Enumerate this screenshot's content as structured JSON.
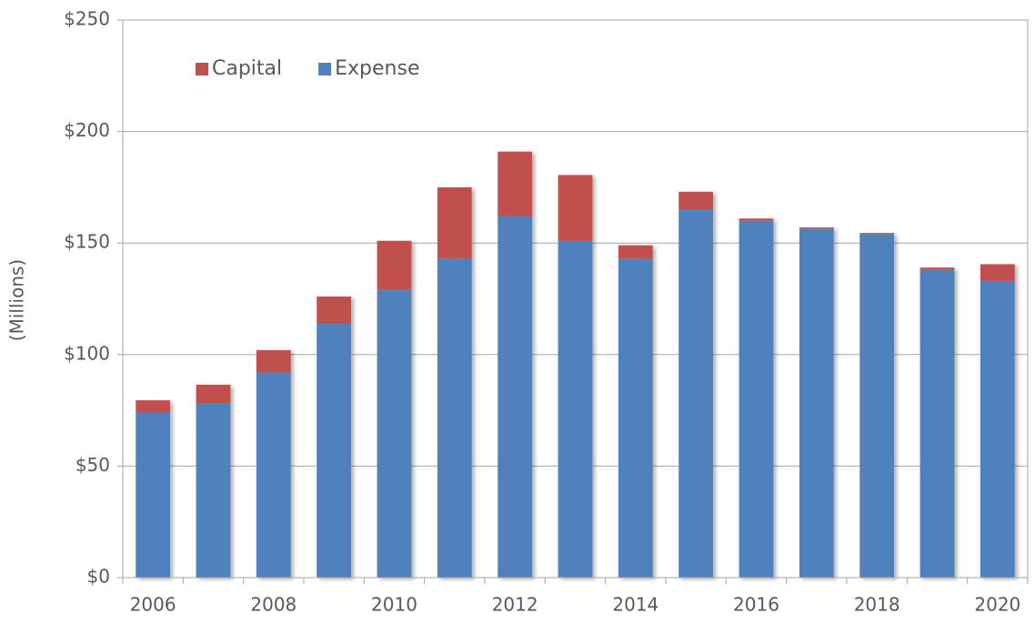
{
  "chart_data": {
    "type": "stacked_bar",
    "y_label": "(Millions)",
    "categories": [
      "2006",
      null,
      "2008",
      null,
      "2010",
      null,
      "2012",
      null,
      "2014",
      null,
      "2016",
      null,
      "2018",
      null,
      "2020"
    ],
    "series": [
      {
        "name": "Expense",
        "color": "#4f81bd",
        "values": [
          74,
          78,
          92,
          114,
          129,
          143,
          162,
          151,
          143,
          165,
          160,
          156.5,
          154,
          138,
          133
        ]
      },
      {
        "name": "Capital",
        "color": "#c0504d",
        "values": [
          5.5,
          8.5,
          10,
          12,
          22,
          32,
          29,
          29.5,
          6,
          8,
          1,
          0.5,
          0.5,
          1,
          7.5
        ]
      }
    ],
    "ylim": [
      0,
      250
    ],
    "yticks": [
      {
        "value": 0,
        "label": "$0"
      },
      {
        "value": 50,
        "label": "$50"
      },
      {
        "value": 100,
        "label": "$100"
      },
      {
        "value": 150,
        "label": "$150"
      },
      {
        "value": 200,
        "label": "$200"
      },
      {
        "value": 250,
        "label": "$250"
      }
    ],
    "grid": true,
    "legend": "upper left"
  }
}
